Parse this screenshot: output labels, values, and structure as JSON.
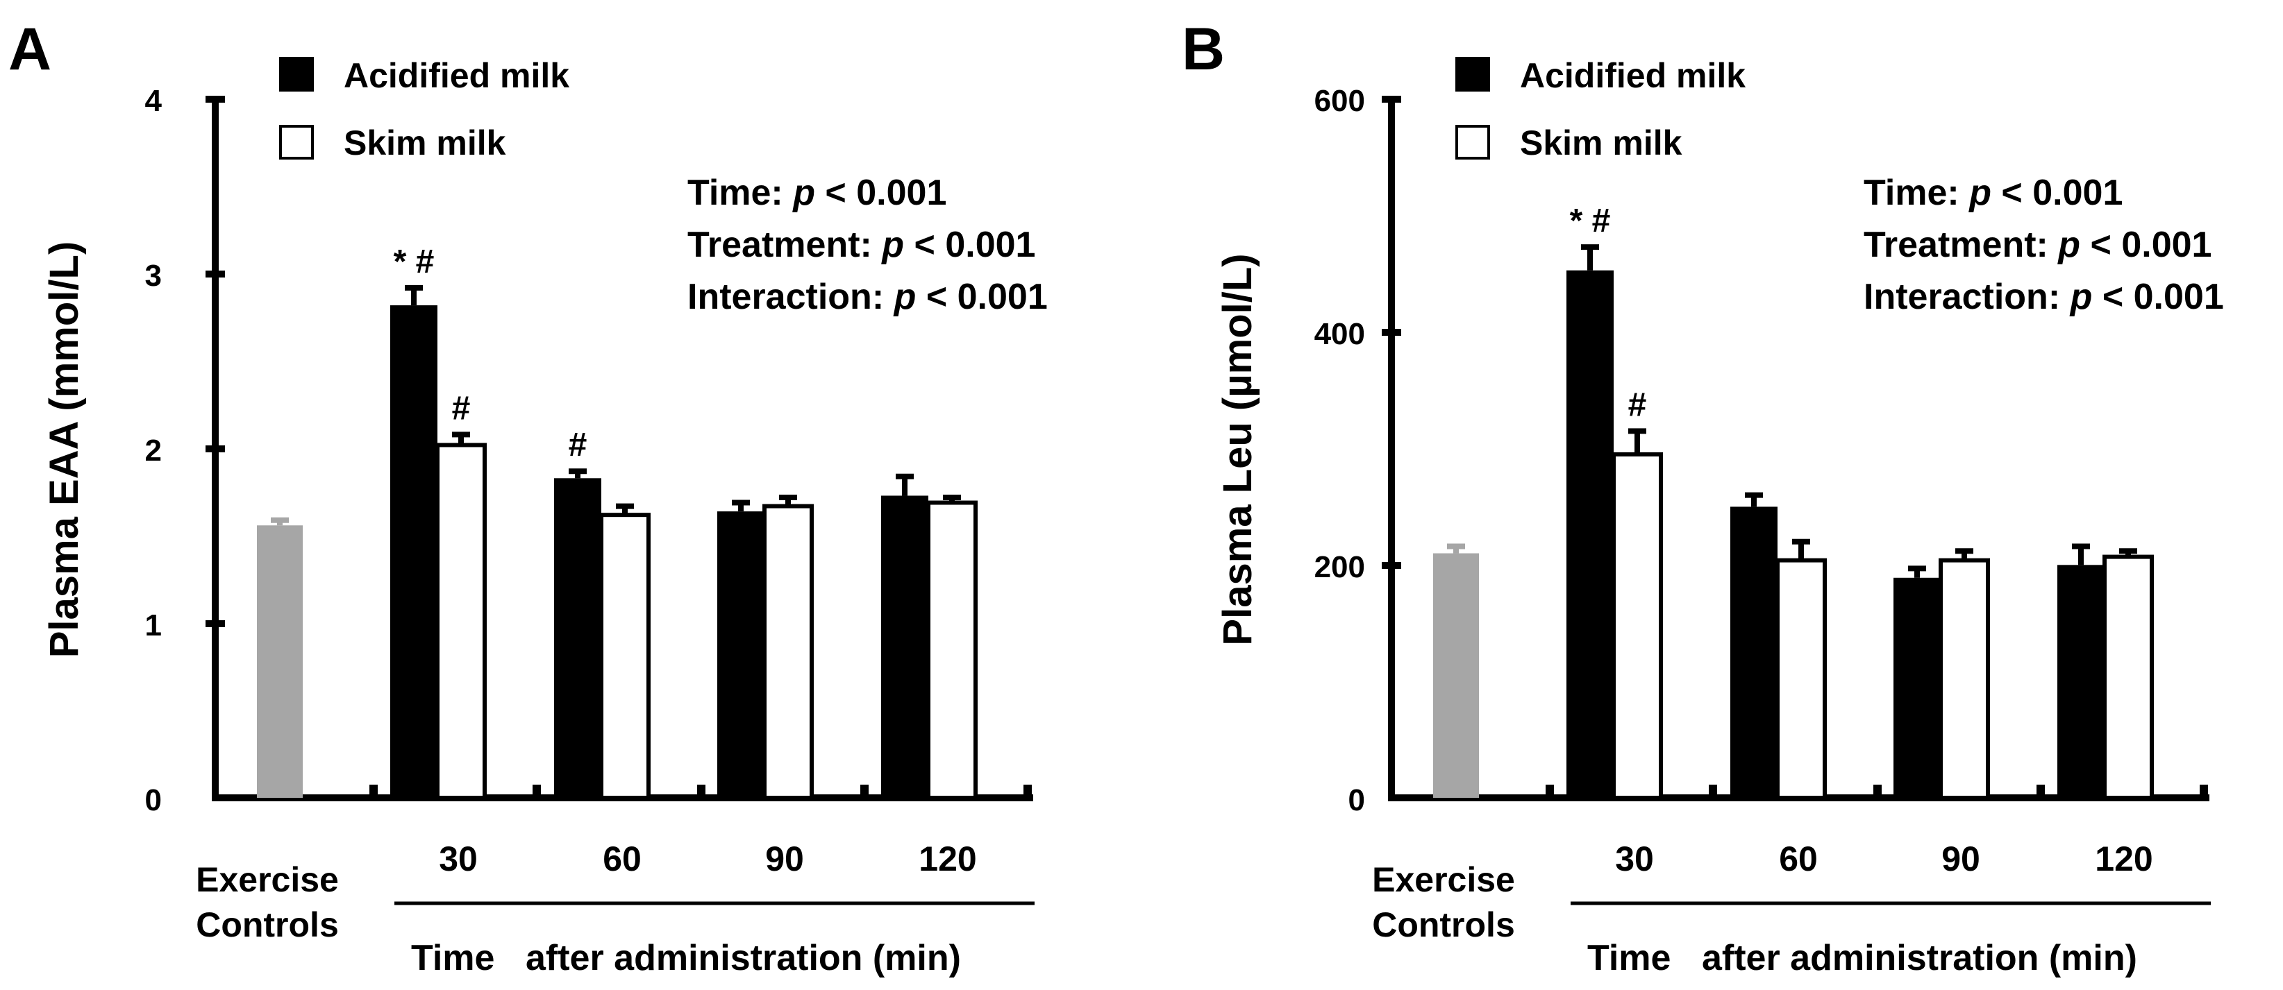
{
  "chart_data": [
    {
      "type": "bar",
      "panel": "A",
      "ylabel": "Plasma EAA (mmol/L)",
      "ylim": [
        0,
        4
      ],
      "yticks": [
        "0",
        "1",
        "2",
        "3",
        "4"
      ],
      "legend": {
        "acidified": "Acidified milk",
        "skim": "Skim milk"
      },
      "stats": {
        "time_label": "Time:",
        "time_p": "p",
        "time_val": "< 0.001",
        "treatment_label": "Treatment:",
        "treatment_p": "p",
        "treatment_val": "< 0.001",
        "interaction_label": "Interaction:",
        "interaction_p": "p",
        "interaction_val": "< 0.001"
      },
      "control": {
        "label_line1": "Exercise",
        "label_line2": "Controls",
        "value": 1.56,
        "error": 0.03,
        "color": "#a6a6a6"
      },
      "categories": [
        "30",
        "60",
        "90",
        "120"
      ],
      "series": [
        {
          "name": "Acidified milk",
          "color": "#000000",
          "values": [
            2.82,
            1.83,
            1.64,
            1.73
          ],
          "errors": [
            0.1,
            0.04,
            0.05,
            0.11
          ],
          "marks": [
            "* #",
            "#",
            "",
            ""
          ]
        },
        {
          "name": "Skim milk",
          "color": "#ffffff",
          "values": [
            2.02,
            1.62,
            1.67,
            1.69
          ],
          "errors": [
            0.06,
            0.05,
            0.05,
            0.03
          ],
          "marks": [
            "#",
            "",
            "",
            ""
          ]
        }
      ],
      "xtitle_a": "Time",
      "xtitle_b": "after administration (min)"
    },
    {
      "type": "bar",
      "panel": "B",
      "ylabel": "Plasma Leu (µmol/L)",
      "ylim": [
        0,
        600
      ],
      "yticks": [
        "0",
        "200",
        "400",
        "600"
      ],
      "legend": {
        "acidified": "Acidified milk",
        "skim": "Skim milk"
      },
      "stats": {
        "time_label": "Time:",
        "time_p": "p",
        "time_val": "< 0.001",
        "treatment_label": "Treatment:",
        "treatment_p": "p",
        "treatment_val": "< 0.001",
        "interaction_label": "Interaction:",
        "interaction_p": "p",
        "interaction_val": "< 0.001"
      },
      "control": {
        "label_line1": "Exercise",
        "label_line2": "Controls",
        "value": 210,
        "error": 6,
        "color": "#a6a6a6"
      },
      "categories": [
        "30",
        "60",
        "90",
        "120"
      ],
      "series": [
        {
          "name": "Acidified milk",
          "color": "#000000",
          "values": [
            453,
            250,
            189,
            200
          ],
          "errors": [
            20,
            10,
            8,
            16
          ],
          "marks": [
            "* #",
            "",
            "",
            ""
          ]
        },
        {
          "name": "Skim milk",
          "color": "#ffffff",
          "values": [
            295,
            204,
            204,
            207
          ],
          "errors": [
            20,
            16,
            8,
            5
          ],
          "marks": [
            "#",
            "",
            "",
            ""
          ]
        }
      ],
      "xtitle_a": "Time",
      "xtitle_b": "after administration (min)"
    }
  ]
}
